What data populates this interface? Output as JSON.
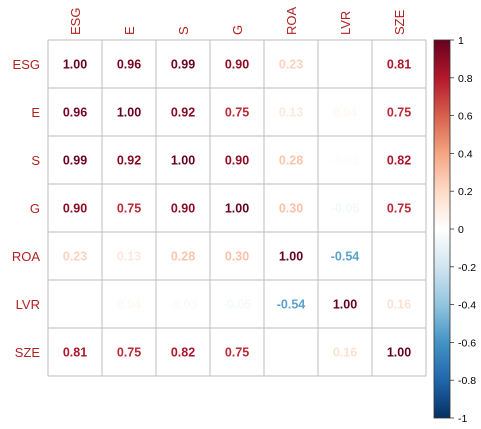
{
  "chart_data": {
    "type": "heatmap",
    "variables": [
      "ESG",
      "E",
      "S",
      "G",
      "ROA",
      "LVR",
      "SZE"
    ],
    "matrix": [
      [
        1.0,
        0.96,
        0.99,
        0.9,
        0.23,
        0.0,
        0.81
      ],
      [
        0.96,
        1.0,
        0.92,
        0.75,
        0.13,
        0.04,
        0.75
      ],
      [
        0.99,
        0.92,
        1.0,
        0.9,
        0.28,
        -0.02,
        0.82
      ],
      [
        0.9,
        0.75,
        0.9,
        1.0,
        0.3,
        -0.05,
        0.75
      ],
      [
        0.23,
        0.13,
        0.28,
        0.3,
        1.0,
        -0.54,
        0.02
      ],
      [
        0.0,
        0.04,
        -0.03,
        -0.05,
        -0.54,
        1.0,
        0.16
      ],
      [
        0.81,
        0.75,
        0.82,
        0.75,
        0.02,
        0.16,
        1.0
      ]
    ],
    "cell_text": [
      [
        "1.00",
        "0.96",
        "0.99",
        "0.90",
        "0.23",
        "",
        "0.81"
      ],
      [
        "0.96",
        "1.00",
        "0.92",
        "0.75",
        "0.13",
        "0.04",
        "0.75"
      ],
      [
        "0.99",
        "0.92",
        "1.00",
        "0.90",
        "0.28",
        "-0.02",
        "0.82"
      ],
      [
        "0.90",
        "0.75",
        "0.90",
        "1.00",
        "0.30",
        "-0.05",
        "0.75"
      ],
      [
        "0.23",
        "0.13",
        "0.28",
        "0.30",
        "1.00",
        "-0.54",
        ""
      ],
      [
        "",
        "0.04",
        "-0.03",
        "-0.05",
        "-0.54",
        "1.00",
        "0.16"
      ],
      [
        "0.81",
        "0.75",
        "0.82",
        "0.75",
        "",
        "0.16",
        "1.00"
      ]
    ],
    "color_scale": {
      "range": [
        -1,
        1
      ],
      "ticks": [
        "1",
        "0.8",
        "0.6",
        "0.4",
        "0.2",
        "0",
        "-0.2",
        "-0.4",
        "-0.6",
        "-0.8",
        "-1"
      ],
      "colors": [
        "#67001F",
        "#B2182B",
        "#D6604D",
        "#F4A582",
        "#FDDBC7",
        "#FFFFFF",
        "#D1E5F0",
        "#92C5DE",
        "#4393C3",
        "#2166AC",
        "#053061"
      ]
    },
    "label_color": "#B22222",
    "grid_color": "#BEBEBE",
    "legend_position": "right"
  }
}
